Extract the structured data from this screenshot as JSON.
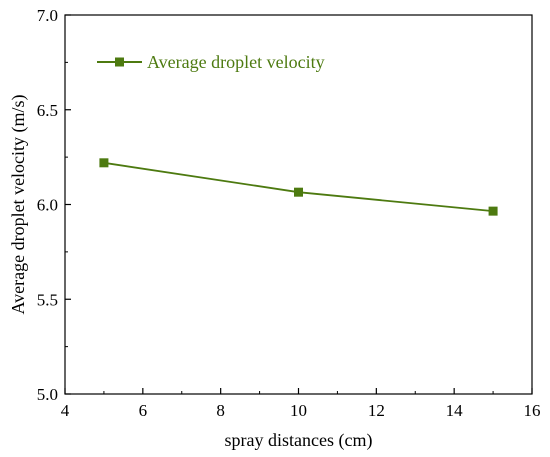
{
  "chart_data": {
    "type": "line",
    "title": "",
    "xlabel": "spray distances (cm)",
    "ylabel": "Average droplet velocity (m/s)",
    "xlim": [
      4,
      16
    ],
    "ylim": [
      5.0,
      7.0
    ],
    "x_ticks": [
      4,
      6,
      8,
      10,
      12,
      14,
      16
    ],
    "y_ticks": [
      "5.0",
      "5.5",
      "6.0",
      "6.5",
      "7.0"
    ],
    "grid": false,
    "legend_position": "top-left",
    "series": [
      {
        "name": "Average droplet velocity",
        "color": "#4d7a10",
        "marker": "square",
        "x": [
          5,
          10,
          15
        ],
        "y": [
          6.22,
          6.065,
          5.965
        ]
      }
    ]
  }
}
